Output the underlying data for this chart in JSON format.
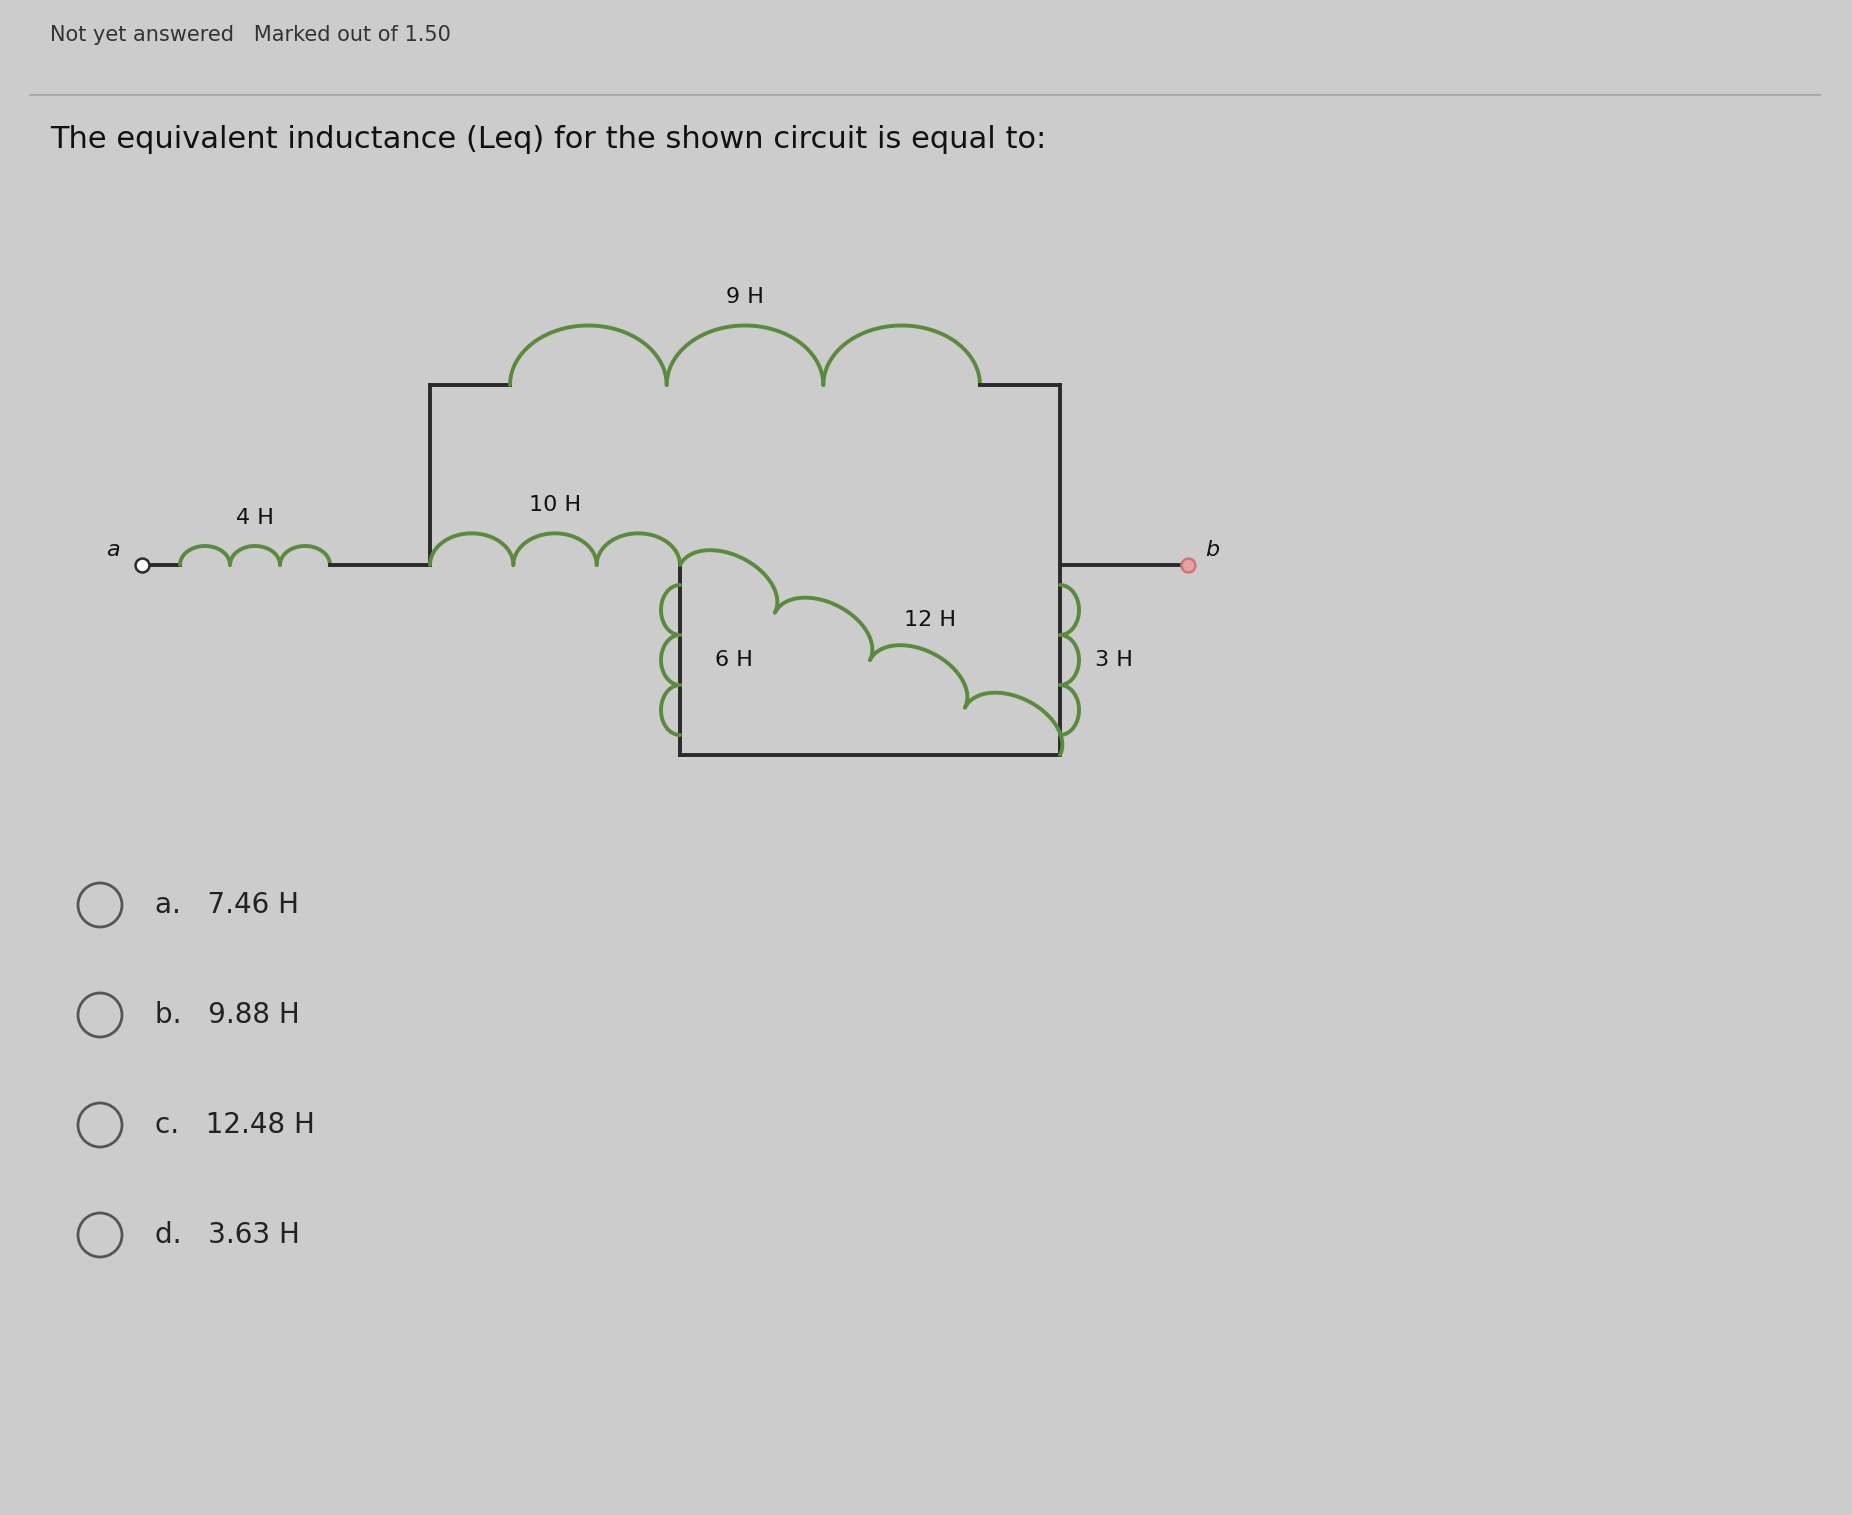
{
  "title": "The equivalent inductance (Leq) for the shown circuit is equal to:",
  "header": "Not yet answered   Marked out of 1.50",
  "bg_color": "#cccccc",
  "circuit_color": "#5a8a3c",
  "wire_color": "#2a2a2a",
  "choices": [
    {
      "label": "a.",
      "value": "7.46 H"
    },
    {
      "label": "b.",
      "value": "9.88 H"
    },
    {
      "label": "c.",
      "value": "12.48 H"
    },
    {
      "label": "d.",
      "value": "3.63 H"
    }
  ],
  "inductor_labels": {
    "L4": "4 H",
    "L10": "10 H",
    "L9": "9 H",
    "L6": "6 H",
    "L12": "12 H",
    "L3": "3 H"
  },
  "node_labels": {
    "a": "a",
    "b": "b"
  }
}
